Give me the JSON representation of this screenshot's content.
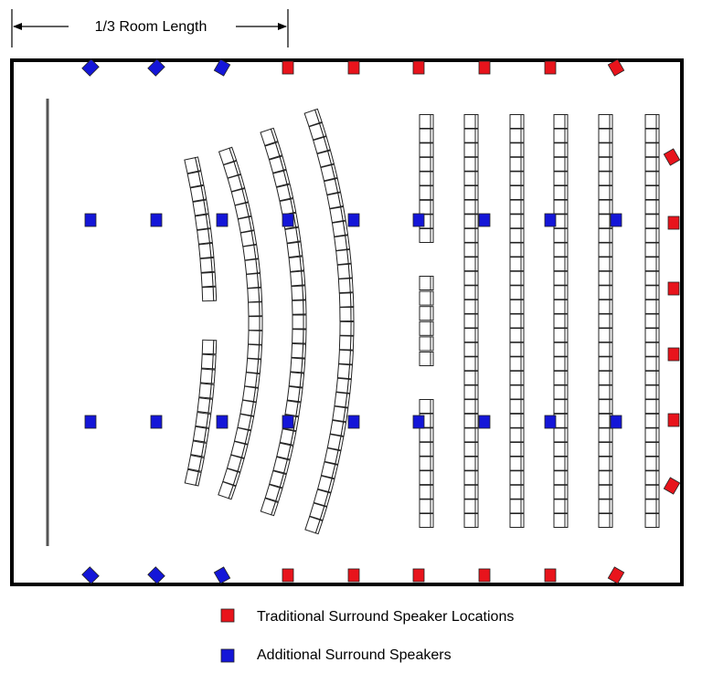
{
  "dimension_label": "1/3 Room Length",
  "legend": {
    "traditional": "Traditional Surround Speaker Locations",
    "additional": "Additional Surround Speakers"
  },
  "colors": {
    "traditional": "#e8141c",
    "additional": "#1416d8",
    "wall": "#000000",
    "screen": "#555555",
    "seat_fill": "#ffffff",
    "seat_stroke": "#222222"
  }
}
